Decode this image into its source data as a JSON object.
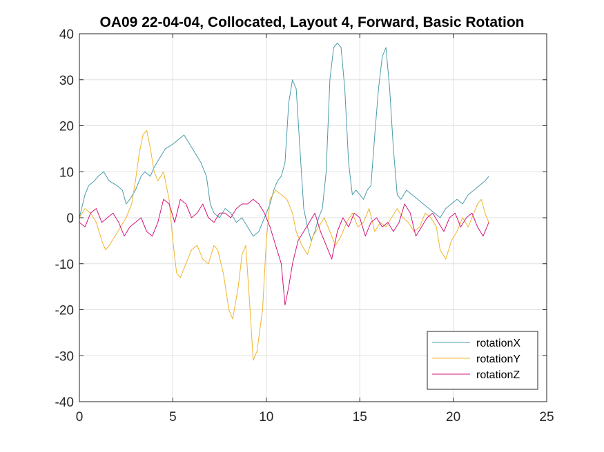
{
  "chart_data": {
    "type": "line",
    "title": "OA09 22-04-04, Collocated, Layout 4, Forward, Basic Rotation",
    "xlabel": "",
    "ylabel": "",
    "xlim": [
      0,
      25
    ],
    "ylim": [
      -40,
      40
    ],
    "xticks": [
      0,
      5,
      10,
      15,
      20,
      25
    ],
    "yticks": [
      -40,
      -30,
      -20,
      -10,
      0,
      10,
      20,
      30,
      40
    ],
    "grid": true,
    "legend_position": "bottom-right",
    "series": [
      {
        "name": "rotationX",
        "color": "#4a9bab",
        "x": [
          0,
          0.3,
          0.5,
          0.8,
          1.0,
          1.3,
          1.6,
          2.0,
          2.3,
          2.5,
          2.7,
          3.0,
          3.3,
          3.5,
          3.8,
          4.0,
          4.3,
          4.6,
          5.0,
          5.3,
          5.6,
          5.9,
          6.2,
          6.5,
          6.8,
          7.0,
          7.2,
          7.5,
          7.8,
          8.1,
          8.4,
          8.7,
          9.0,
          9.3,
          9.6,
          9.9,
          10.2,
          10.4,
          10.6,
          10.8,
          11.0,
          11.2,
          11.4,
          11.6,
          11.8,
          12.0,
          12.2,
          12.4,
          12.6,
          12.8,
          13.0,
          13.2,
          13.4,
          13.6,
          13.8,
          14.0,
          14.2,
          14.4,
          14.6,
          14.8,
          15.0,
          15.2,
          15.4,
          15.6,
          15.8,
          16.0,
          16.2,
          16.4,
          16.6,
          16.8,
          17.0,
          17.2,
          17.5,
          17.8,
          18.1,
          18.4,
          18.7,
          19.0,
          19.3,
          19.6,
          19.9,
          20.2,
          20.5,
          20.8,
          21.1,
          21.4,
          21.7,
          21.9
        ],
        "values": [
          0,
          5,
          7,
          8,
          9,
          10,
          8,
          7,
          6,
          3,
          4,
          6,
          9,
          10,
          9,
          11,
          13,
          15,
          16,
          17,
          18,
          16,
          14,
          12,
          9,
          3,
          1,
          0,
          2,
          1,
          -1,
          0,
          -2,
          -4,
          -3,
          0,
          3,
          6,
          8,
          9,
          12,
          25,
          30,
          28,
          15,
          2,
          -2,
          -5,
          -3,
          0,
          2,
          10,
          30,
          37,
          38,
          37,
          28,
          12,
          5,
          6,
          5,
          4,
          6,
          7,
          18,
          28,
          35,
          37,
          28,
          15,
          5,
          4,
          6,
          5,
          4,
          3,
          2,
          1,
          0,
          2,
          3,
          4,
          3,
          5,
          6,
          7,
          8,
          9
        ]
      },
      {
        "name": "rotationY",
        "color": "#f0b429",
        "x": [
          0,
          0.3,
          0.6,
          0.9,
          1.2,
          1.4,
          1.6,
          1.9,
          2.2,
          2.5,
          2.8,
          3.0,
          3.2,
          3.4,
          3.6,
          3.8,
          4.0,
          4.2,
          4.5,
          4.8,
          5.0,
          5.2,
          5.4,
          5.7,
          6.0,
          6.3,
          6.6,
          6.9,
          7.2,
          7.4,
          7.7,
          8.0,
          8.2,
          8.5,
          8.7,
          8.9,
          9.1,
          9.3,
          9.5,
          9.8,
          10.0,
          10.2,
          10.5,
          10.8,
          11.1,
          11.4,
          11.6,
          11.9,
          12.2,
          12.5,
          12.8,
          13.1,
          13.4,
          13.7,
          14.0,
          14.3,
          14.6,
          14.9,
          15.2,
          15.5,
          15.8,
          16.1,
          16.4,
          16.7,
          17.0,
          17.3,
          17.6,
          17.9,
          18.2,
          18.5,
          18.8,
          19.1,
          19.3,
          19.6,
          19.9,
          20.2,
          20.5,
          20.8,
          21.1,
          21.3,
          21.5,
          21.7,
          21.9
        ],
        "values": [
          0,
          2,
          1,
          -1,
          -5,
          -7,
          -6,
          -4,
          -2,
          0,
          3,
          8,
          14,
          18,
          19,
          15,
          10,
          8,
          10,
          4,
          -5,
          -12,
          -13,
          -10,
          -7,
          -6,
          -9,
          -10,
          -6,
          -7,
          -12,
          -20,
          -22,
          -15,
          -8,
          -6,
          -18,
          -31,
          -29,
          -20,
          -5,
          4,
          6,
          5,
          4,
          1,
          -3,
          -6,
          -8,
          -4,
          -2,
          0,
          -3,
          -6,
          -4,
          -1,
          1,
          -2,
          -1,
          2,
          -3,
          -1,
          -2,
          0,
          2,
          0,
          -1,
          -3,
          -2,
          1,
          0,
          -2,
          -7,
          -9,
          -5,
          -3,
          0,
          -2,
          1,
          3,
          4,
          1,
          -1
        ]
      },
      {
        "name": "rotationZ",
        "color": "#d4147a",
        "x": [
          0,
          0.3,
          0.6,
          0.9,
          1.2,
          1.5,
          1.8,
          2.1,
          2.4,
          2.7,
          3.0,
          3.3,
          3.6,
          3.9,
          4.2,
          4.5,
          4.8,
          5.1,
          5.4,
          5.7,
          6.0,
          6.3,
          6.6,
          6.9,
          7.2,
          7.5,
          7.8,
          8.1,
          8.4,
          8.7,
          9.0,
          9.3,
          9.6,
          9.9,
          10.2,
          10.5,
          10.8,
          11.0,
          11.2,
          11.4,
          11.7,
          12.0,
          12.3,
          12.6,
          12.9,
          13.2,
          13.5,
          13.8,
          14.1,
          14.4,
          14.7,
          15.0,
          15.3,
          15.6,
          15.9,
          16.2,
          16.5,
          16.8,
          17.1,
          17.4,
          17.7,
          18.0,
          18.3,
          18.6,
          18.9,
          19.2,
          19.5,
          19.8,
          20.1,
          20.4,
          20.7,
          21.0,
          21.3,
          21.6,
          21.9
        ],
        "values": [
          -1,
          -2,
          1,
          2,
          -1,
          0,
          1,
          -1,
          -4,
          -2,
          -1,
          0,
          -3,
          -4,
          -1,
          4,
          3,
          -1,
          4,
          3,
          0,
          1,
          3,
          0,
          -1,
          1,
          1,
          0,
          2,
          3,
          3,
          4,
          3,
          1,
          -2,
          -6,
          -10,
          -19,
          -15,
          -10,
          -5,
          -3,
          -1,
          1,
          -3,
          -6,
          -9,
          -3,
          0,
          -2,
          1,
          0,
          -4,
          -1,
          0,
          -2,
          -1,
          -3,
          -1,
          3,
          1,
          -4,
          -2,
          0,
          1,
          -1,
          -3,
          0,
          1,
          -2,
          0,
          1,
          -2,
          -4,
          -1
        ]
      }
    ]
  }
}
